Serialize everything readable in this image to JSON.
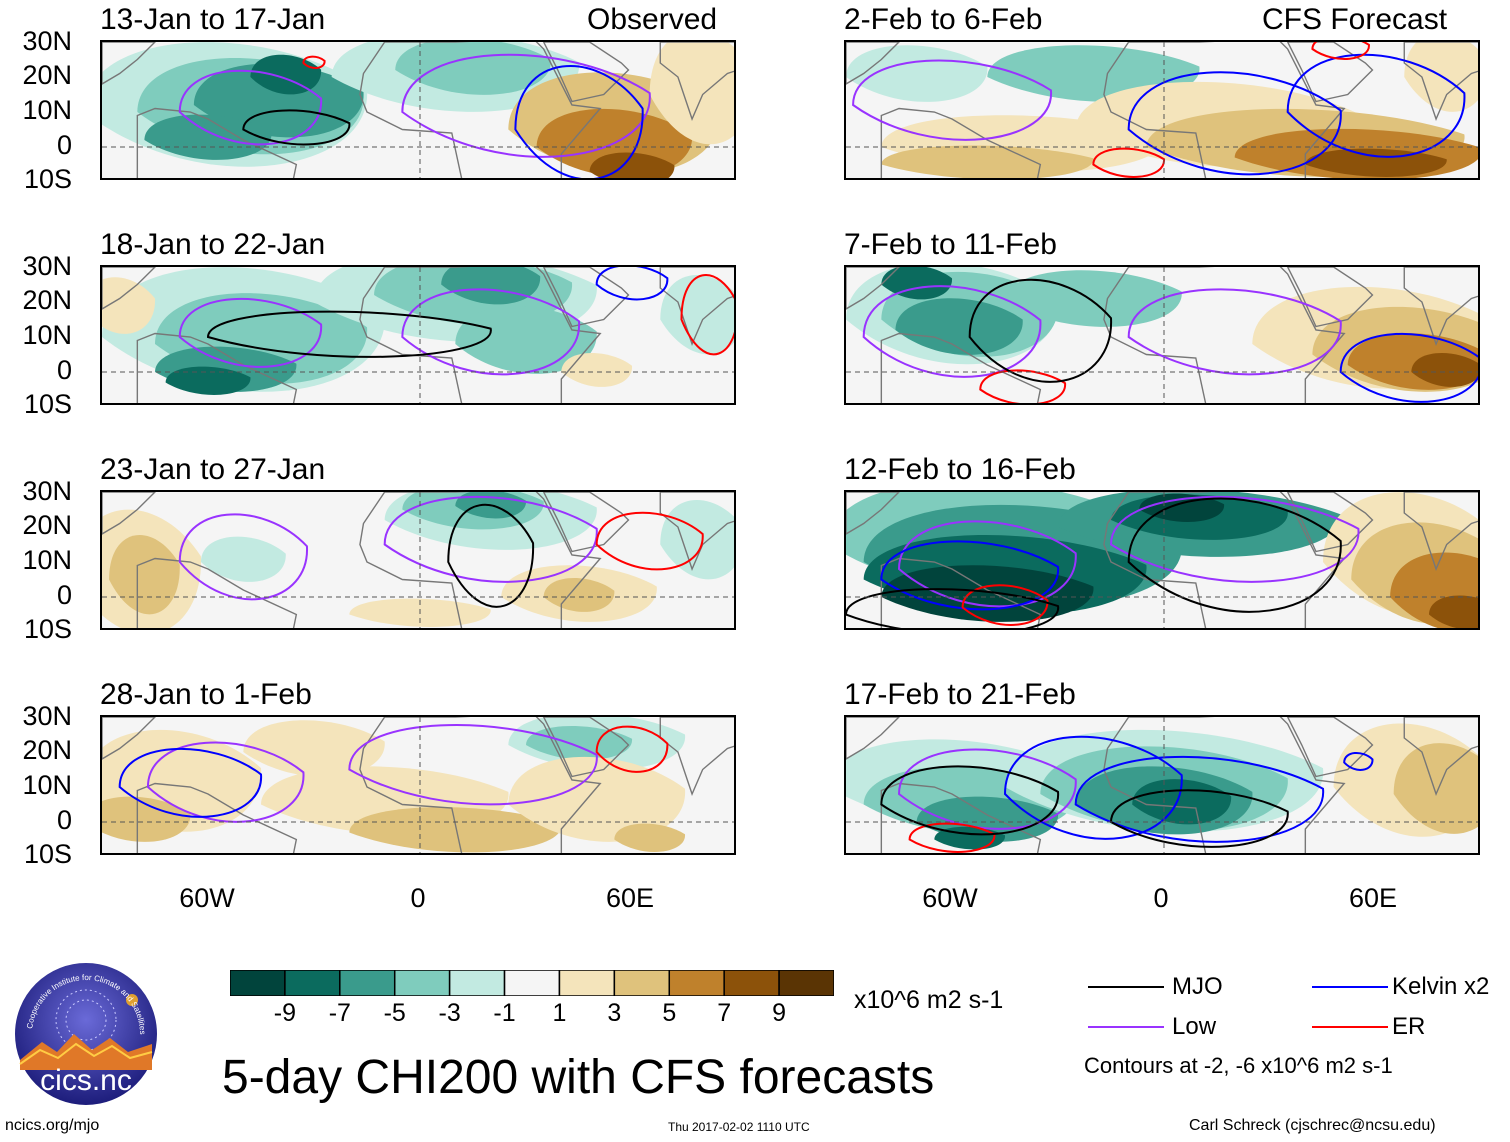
{
  "title": "5-day CHI200 with CFS forecasts",
  "observed_label": "Observed",
  "forecast_label": "CFS Forecast",
  "lat_labels": [
    "30N",
    "20N",
    "10N",
    "0",
    "10S"
  ],
  "lon_labels": [
    "60W",
    "0",
    "60E"
  ],
  "panels_left": [
    {
      "period": "13-Jan to 17-Jan"
    },
    {
      "period": "18-Jan to 22-Jan"
    },
    {
      "period": "23-Jan to 27-Jan"
    },
    {
      "period": "28-Jan to 1-Feb"
    }
  ],
  "panels_right": [
    {
      "period": "2-Feb to 6-Feb"
    },
    {
      "period": "7-Feb to 11-Feb"
    },
    {
      "period": "12-Feb to 16-Feb"
    },
    {
      "period": "17-Feb to 21-Feb"
    }
  ],
  "colorbar": {
    "labels": [
      "-9",
      "-7",
      "-5",
      "-3",
      "-1",
      "1",
      "3",
      "5",
      "7",
      "9"
    ],
    "colors": [
      "#01443c",
      "#0b6b5e",
      "#3a9b8c",
      "#7fccbd",
      "#c2eae1",
      "#f5f5f5",
      "#f4e4bb",
      "#dfc27c",
      "#bf812c",
      "#8c520a",
      "#5a3404"
    ],
    "units": "x10^6 m2 s-1"
  },
  "legend": {
    "items": [
      {
        "label": "MJO",
        "color": "#000000"
      },
      {
        "label": "Kelvin x2",
        "color": "#0000ff"
      },
      {
        "label": "Low",
        "color": "#9933ff"
      },
      {
        "label": "ER",
        "color": "#ff0000"
      }
    ],
    "contours_note": "Contours at -2, -6 x10^6 m2 s-1"
  },
  "logo_text": "cics.nc",
  "logo_ring_text": "Cooperative Institute for Climate and Satellites",
  "footer": {
    "url": "ncics.org/mjo",
    "timestamp": "Thu 2017-02-02 1110 UTC",
    "author": "Carl Schreck (cjschrec@ncsu.edu)"
  }
}
